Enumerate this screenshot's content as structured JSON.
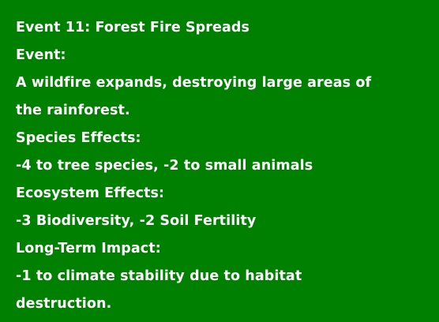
{
  "event_card": {
    "background_color": "#008000",
    "text_color": "#ffffff",
    "title": "Event 11: Forest Fire Spreads",
    "event_label": "Event:",
    "event_desc_line1": "A wildfire expands, destroying large areas of",
    "event_desc_line2": "the rainforest.",
    "species_label": "Species Effects:",
    "species_text": "-4 to tree species, -2 to small animals",
    "ecosystem_label": "Ecosystem Effects:",
    "ecosystem_text": "-3 Biodiversity, -2 Soil Fertility",
    "longterm_label": "Long-Term Impact:",
    "longterm_line1": "-1 to climate stability due to habitat",
    "longterm_line2": "destruction."
  }
}
